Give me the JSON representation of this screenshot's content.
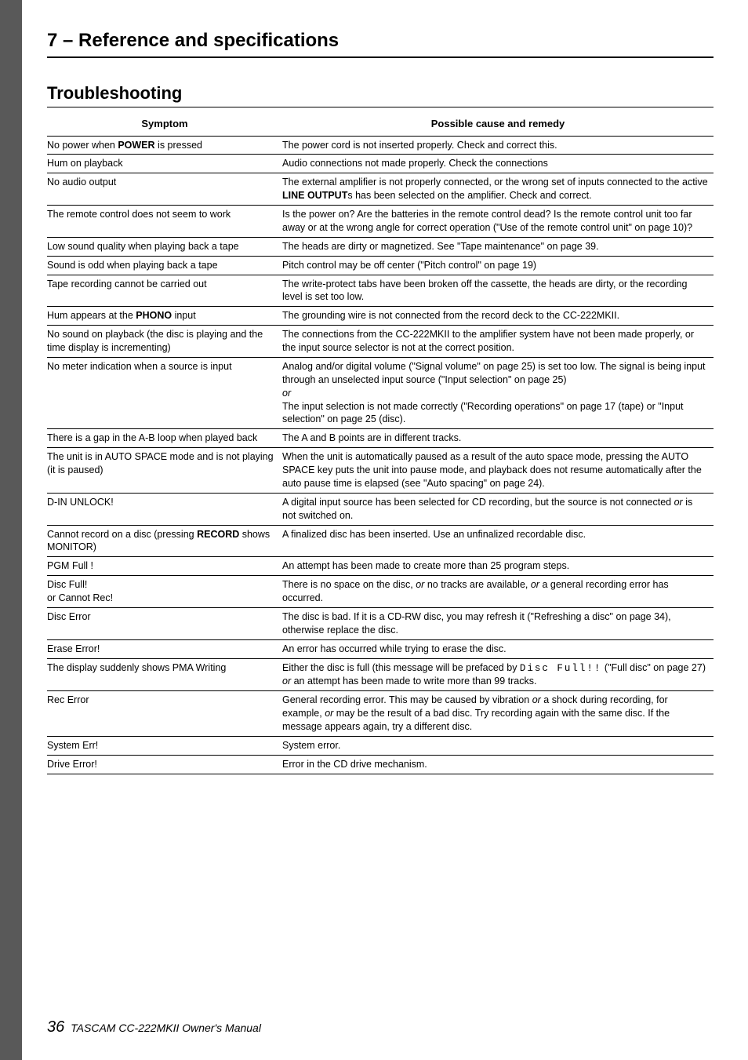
{
  "header": {
    "section_title": "7 – Reference and specifications"
  },
  "subsection_title": "Troubleshooting",
  "table": {
    "header_symptom": "Symptom",
    "header_remedy": "Possible cause and remedy",
    "rows": [
      {
        "symptom_pre": "No power when ",
        "symptom_bold": "POWER",
        "symptom_post": " is pressed",
        "remedy": "The power cord is not inserted properly. Check and correct this."
      },
      {
        "symptom": "Hum on playback",
        "remedy": "Audio connections not made properly. Check the connections"
      },
      {
        "symptom": "No audio output",
        "remedy_pre": "The external amplifier is not properly connected, or the wrong set of inputs connected to the active ",
        "remedy_bold": "LINE OUTPUT",
        "remedy_post": "s has been selected on the amplifier. Check and correct."
      },
      {
        "symptom": "The remote control does not seem to work",
        "remedy": "Is the power on? Are the batteries in the remote control dead? Is the remote control unit too far away or at the wrong angle for correct operation (\"Use of the remote control unit\" on page 10)?"
      },
      {
        "symptom": "Low sound quality when playing back a tape",
        "remedy": "The heads are dirty or magnetized. See \"Tape maintenance\" on page 39."
      },
      {
        "symptom": "Sound is odd when playing back a tape",
        "remedy": "Pitch control may be off center (\"Pitch control\" on page 19)"
      },
      {
        "symptom": "Tape recording cannot be carried out",
        "remedy": "The write-protect tabs have been broken off the cassette, the heads are dirty, or the recording level is set too low."
      },
      {
        "symptom_pre": "Hum appears at the ",
        "symptom_bold": "PHONO",
        "symptom_post": " input",
        "remedy": "The grounding wire is not connected from the record deck to the CC-222MKII."
      },
      {
        "symptom": "No sound on playback (the disc is playing and the time display is incrementing)",
        "remedy": "The connections from the CC-222MKII to the amplifier system have not been made properly, or the input source selector is not at the correct position."
      },
      {
        "symptom": "No meter indication when a source is input",
        "remedy_line1": "Analog and/or digital volume (\"Signal volume\" on page 25) is set too low. The signal is being input through an unselected input source (\"Input selection\" on page 25)",
        "remedy_or": "or",
        "remedy_line2": "The input selection is not made correctly (\"Recording operations\" on page 17 (tape) or \"Input selection\" on page 25 (disc)."
      },
      {
        "symptom": "There is a gap in the A-B loop when played back",
        "remedy": "The A and B points are in different tracks."
      },
      {
        "symptom": "The unit is in AUTO SPACE mode and is not playing (it is paused)",
        "remedy": "When the unit is automatically paused as a result of the auto space mode, pressing the AUTO SPACE key puts the unit into pause mode, and playback does not resume automatically after the auto pause time is elapsed (see \"Auto spacing\" on page 24)."
      },
      {
        "symptom": "D-IN UNLOCK!",
        "remedy_pre": "A digital input source has been selected for CD recording, but the source is not connected ",
        "remedy_italic": "or",
        "remedy_post": " is not switched on."
      },
      {
        "symptom_pre": "Cannot record on a disc (pressing ",
        "symptom_bold": "RECORD",
        "symptom_post": " shows MONITOR)",
        "remedy": "A finalized disc has been inserted. Use an unfinalized recordable disc."
      },
      {
        "symptom": "PGM Full !",
        "remedy": "An attempt has been made to create more than 25 program steps."
      },
      {
        "symptom_line1": "Disc Full!",
        "symptom_line2": "or Cannot Rec!",
        "remedy_1": "There is no space on the disc, ",
        "remedy_it1": "or",
        "remedy_2": " no tracks are available, ",
        "remedy_it2": "or",
        "remedy_3": " a general recording error has occurred."
      },
      {
        "symptom": "Disc Error",
        "remedy": "The disc is bad. If it is a CD-RW disc, you may refresh it (\"Refreshing a disc\" on page 34), otherwise replace the disc."
      },
      {
        "symptom": "Erase Error!",
        "remedy": "An error has occurred while trying to erase the disc."
      },
      {
        "symptom": "The display suddenly shows PMA Writing",
        "remedy_1": "Either the disc is full (this message will be prefaced by ",
        "remedy_mono": "Disc Full!!",
        "remedy_2": " (\"Full disc\" on page 27) ",
        "remedy_it": "or",
        "remedy_3": " an attempt has been made to write more than 99 tracks."
      },
      {
        "symptom": "Rec Error",
        "remedy_1": "General recording error. This may be caused by vibration ",
        "remedy_it1": "or",
        "remedy_2": " a shock during recording, for example, ",
        "remedy_it2": "or",
        "remedy_3": " may be the result of a bad disc. Try recording again with the same disc. If the message appears again, try a different disc."
      },
      {
        "symptom": "System Err!",
        "remedy": "System error."
      },
      {
        "symptom": "Drive Error!",
        "remedy": "Error in the CD drive mechanism."
      }
    ]
  },
  "footer": {
    "page_number": "36",
    "text": "TASCAM CC-222MKII Owner's Manual"
  }
}
